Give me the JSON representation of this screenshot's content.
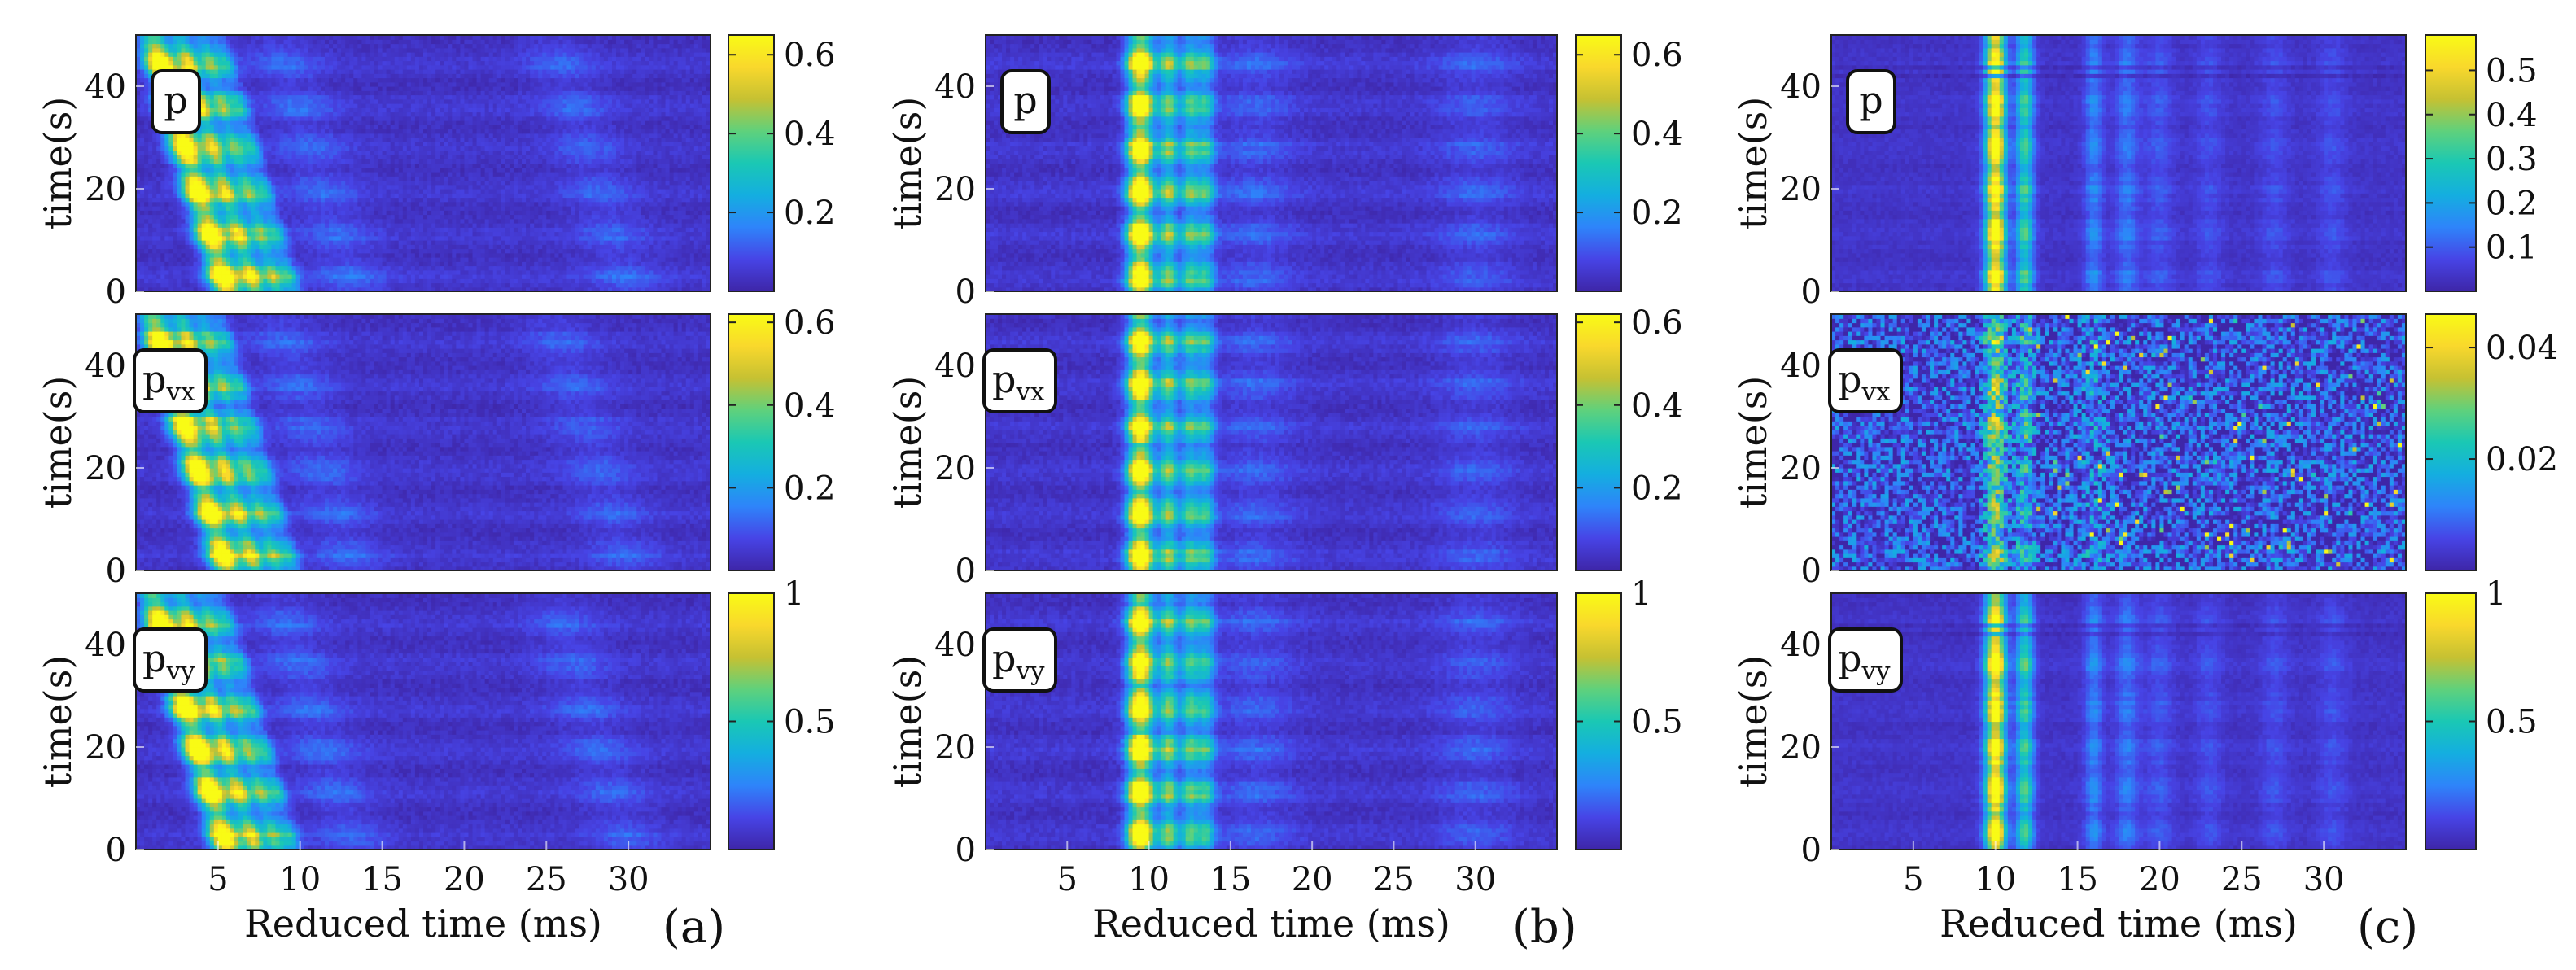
{
  "figure": {
    "panel_tags": [
      "(a)",
      "(b)",
      "(c)"
    ],
    "colormap": [
      "#3e26a8",
      "#4744e6",
      "#2e84fa",
      "#14aee0",
      "#1ac8b4",
      "#5fd17c",
      "#c6c132",
      "#f9d82c",
      "#f9fb15"
    ]
  },
  "chart_data": [
    {
      "id": "a-p",
      "type": "heatmap",
      "column": "a",
      "row": 1,
      "label_main": "p",
      "label_sub": "",
      "ylabel": "time(s)",
      "xlabel": "",
      "xlim": [
        0,
        35
      ],
      "ylim": [
        0,
        50
      ],
      "xticks": [],
      "xtick_labels": [],
      "yticks": [
        0,
        20,
        40
      ],
      "ytick_labels": [
        "0",
        "20",
        "40"
      ],
      "clim": [
        0,
        0.65
      ],
      "cbar_ticks": [
        0.2,
        0.4,
        0.6
      ],
      "cbar_tick_labels": [
        "0.2",
        "0.4",
        "0.6"
      ],
      "pattern": "slanted",
      "features": [
        [
          5.6,
          0.62,
          1.0
        ],
        [
          7.3,
          0.45,
          0.68
        ],
        [
          8.6,
          0.4,
          0.48
        ],
        [
          9.6,
          0.4,
          0.32
        ],
        [
          13.2,
          1.5,
          0.1
        ],
        [
          30.0,
          1.5,
          0.09
        ]
      ],
      "drift_ms_per_s": -0.092,
      "noise_level": 0.07,
      "periodic_mod": 0.4,
      "period_s": 8.3
    },
    {
      "id": "a-pvx",
      "type": "heatmap",
      "column": "a",
      "row": 2,
      "label_main": "p",
      "label_sub": "vx",
      "ylabel": "time(s)",
      "xlabel": "",
      "xlim": [
        0,
        35
      ],
      "ylim": [
        0,
        50
      ],
      "xticks": [],
      "xtick_labels": [],
      "yticks": [
        0,
        20,
        40
      ],
      "ytick_labels": [
        "0",
        "20",
        "40"
      ],
      "clim": [
        0,
        0.62
      ],
      "cbar_ticks": [
        0.2,
        0.4,
        0.6
      ],
      "cbar_tick_labels": [
        "0.2",
        "0.4",
        "0.6"
      ],
      "pattern": "slanted",
      "features": [
        [
          5.6,
          0.62,
          1.0
        ],
        [
          7.3,
          0.45,
          0.68
        ],
        [
          8.6,
          0.4,
          0.48
        ],
        [
          9.6,
          0.4,
          0.32
        ],
        [
          13.2,
          1.5,
          0.1
        ],
        [
          30.0,
          1.5,
          0.09
        ]
      ],
      "drift_ms_per_s": -0.092,
      "noise_level": 0.07,
      "periodic_mod": 0.4,
      "period_s": 8.3
    },
    {
      "id": "a-pvy",
      "type": "heatmap",
      "column": "a",
      "row": 3,
      "label_main": "p",
      "label_sub": "vy",
      "ylabel": "time(s)",
      "xlabel": "Reduced time (ms)",
      "xlim": [
        0,
        35
      ],
      "ylim": [
        0,
        50
      ],
      "xticks": [
        5,
        10,
        15,
        20,
        25,
        30
      ],
      "xtick_labels": [
        "5",
        "10",
        "15",
        "20",
        "25",
        "30"
      ],
      "yticks": [
        0,
        20,
        40
      ],
      "ytick_labels": [
        "0",
        "20",
        "40"
      ],
      "clim": [
        0,
        1.0
      ],
      "cbar_ticks": [
        0.5,
        1.0
      ],
      "cbar_tick_labels": [
        "0.5",
        "1"
      ],
      "pattern": "slanted",
      "features": [
        [
          5.6,
          0.62,
          1.0
        ],
        [
          7.3,
          0.45,
          0.68
        ],
        [
          8.6,
          0.4,
          0.48
        ],
        [
          9.6,
          0.4,
          0.32
        ],
        [
          13.2,
          1.5,
          0.1
        ],
        [
          30.0,
          1.5,
          0.09
        ]
      ],
      "drift_ms_per_s": -0.092,
      "noise_level": 0.07,
      "periodic_mod": 0.4,
      "period_s": 8.3
    },
    {
      "id": "b-p",
      "type": "heatmap",
      "column": "b",
      "row": 1,
      "label_main": "p",
      "label_sub": "",
      "ylabel": "time(s)",
      "xlabel": "",
      "xlim": [
        0,
        35
      ],
      "ylim": [
        0,
        50
      ],
      "xticks": [],
      "xtick_labels": [],
      "yticks": [
        0,
        20,
        40
      ],
      "ytick_labels": [
        "0",
        "20",
        "40"
      ],
      "clim": [
        0,
        0.65
      ],
      "cbar_ticks": [
        0.2,
        0.4,
        0.6
      ],
      "cbar_tick_labels": [
        "0.2",
        "0.4",
        "0.6"
      ],
      "pattern": "vertical",
      "features": [
        [
          9.5,
          0.55,
          1.0
        ],
        [
          11.2,
          0.4,
          0.5
        ],
        [
          12.5,
          0.4,
          0.42
        ],
        [
          13.5,
          0.4,
          0.36
        ],
        [
          16.5,
          1.6,
          0.09
        ],
        [
          30.0,
          1.6,
          0.08
        ]
      ],
      "drift_ms_per_s": 0.0,
      "noise_level": 0.07,
      "periodic_mod": 0.4,
      "period_s": 8.3
    },
    {
      "id": "b-pvx",
      "type": "heatmap",
      "column": "b",
      "row": 2,
      "label_main": "p",
      "label_sub": "vx",
      "ylabel": "time(s)",
      "xlabel": "",
      "xlim": [
        0,
        35
      ],
      "ylim": [
        0,
        50
      ],
      "xticks": [],
      "xtick_labels": [],
      "yticks": [
        0,
        20,
        40
      ],
      "ytick_labels": [
        "0",
        "20",
        "40"
      ],
      "clim": [
        0,
        0.62
      ],
      "cbar_ticks": [
        0.2,
        0.4,
        0.6
      ],
      "cbar_tick_labels": [
        "0.2",
        "0.4",
        "0.6"
      ],
      "pattern": "vertical",
      "features": [
        [
          9.5,
          0.55,
          1.0
        ],
        [
          11.2,
          0.4,
          0.5
        ],
        [
          12.5,
          0.4,
          0.42
        ],
        [
          13.5,
          0.4,
          0.36
        ],
        [
          16.5,
          1.6,
          0.09
        ],
        [
          30.0,
          1.6,
          0.08
        ]
      ],
      "drift_ms_per_s": 0.0,
      "noise_level": 0.07,
      "periodic_mod": 0.4,
      "period_s": 8.3
    },
    {
      "id": "b-pvy",
      "type": "heatmap",
      "column": "b",
      "row": 3,
      "label_main": "p",
      "label_sub": "vy",
      "ylabel": "time(s)",
      "xlabel": "Reduced time (ms)",
      "xlim": [
        0,
        35
      ],
      "ylim": [
        0,
        50
      ],
      "xticks": [
        5,
        10,
        15,
        20,
        25,
        30
      ],
      "xtick_labels": [
        "5",
        "10",
        "15",
        "20",
        "25",
        "30"
      ],
      "yticks": [
        0,
        20,
        40
      ],
      "ytick_labels": [
        "0",
        "20",
        "40"
      ],
      "clim": [
        0,
        1.0
      ],
      "cbar_ticks": [
        0.5,
        1.0
      ],
      "cbar_tick_labels": [
        "0.5",
        "1"
      ],
      "pattern": "vertical",
      "features": [
        [
          9.5,
          0.55,
          1.0
        ],
        [
          11.2,
          0.4,
          0.5
        ],
        [
          12.5,
          0.4,
          0.42
        ],
        [
          13.5,
          0.4,
          0.36
        ],
        [
          16.5,
          1.6,
          0.09
        ],
        [
          30.0,
          1.6,
          0.08
        ]
      ],
      "drift_ms_per_s": 0.0,
      "noise_level": 0.07,
      "periodic_mod": 0.4,
      "period_s": 8.3
    },
    {
      "id": "c-p",
      "type": "heatmap",
      "column": "c",
      "row": 1,
      "label_main": "p",
      "label_sub": "",
      "ylabel": "time(s)",
      "xlabel": "",
      "xlim": [
        0,
        35
      ],
      "ylim": [
        0,
        50
      ],
      "xticks": [],
      "xtick_labels": [],
      "yticks": [
        0,
        20,
        40
      ],
      "ytick_labels": [
        "0",
        "20",
        "40"
      ],
      "clim": [
        0,
        0.58
      ],
      "cbar_ticks": [
        0.1,
        0.2,
        0.3,
        0.4,
        0.5
      ],
      "cbar_tick_labels": [
        "0.1",
        "0.2",
        "0.3",
        "0.4",
        "0.5"
      ],
      "pattern": "vertical",
      "features": [
        [
          10.0,
          0.42,
          1.0
        ],
        [
          11.8,
          0.38,
          0.48
        ],
        [
          16.0,
          0.4,
          0.2
        ],
        [
          18.0,
          0.5,
          0.17
        ],
        [
          20.0,
          0.6,
          0.1
        ],
        [
          23.0,
          0.6,
          0.08
        ],
        [
          27.0,
          0.6,
          0.08
        ],
        [
          30.5,
          0.6,
          0.08
        ]
      ],
      "drift_ms_per_s": 0.0,
      "noise_level": 0.05,
      "periodic_mod": 0.18,
      "period_s": 8.3,
      "stripes_s": [
        42.0,
        43.5
      ]
    },
    {
      "id": "c-pvx",
      "type": "heatmap",
      "column": "c",
      "row": 2,
      "label_main": "p",
      "label_sub": "vx",
      "ylabel": "time(s)",
      "xlabel": "",
      "xlim": [
        0,
        35
      ],
      "ylim": [
        0,
        50
      ],
      "xticks": [],
      "xtick_labels": [],
      "yticks": [
        0,
        20,
        40
      ],
      "ytick_labels": [
        "0",
        "20",
        "40"
      ],
      "clim": [
        0,
        0.046
      ],
      "cbar_ticks": [
        0.02,
        0.04
      ],
      "cbar_tick_labels": [
        "0.02",
        "0.04"
      ],
      "pattern": "noisy",
      "features": [
        [
          10.0,
          0.45,
          0.55
        ],
        [
          11.8,
          0.4,
          0.3
        ],
        [
          16.0,
          0.6,
          0.14
        ]
      ],
      "drift_ms_per_s": 0.0,
      "noise_level": 0.24,
      "periodic_mod": 0.2,
      "period_s": 8.3,
      "stripes_s": [
        42.0,
        43.5
      ]
    },
    {
      "id": "c-pvy",
      "type": "heatmap",
      "column": "c",
      "row": 3,
      "label_main": "p",
      "label_sub": "vy",
      "ylabel": "time(s)",
      "xlabel": "Reduced time (ms)",
      "xlim": [
        0,
        35
      ],
      "ylim": [
        0,
        50
      ],
      "xticks": [
        5,
        10,
        15,
        20,
        25,
        30
      ],
      "xtick_labels": [
        "5",
        "10",
        "15",
        "20",
        "25",
        "30"
      ],
      "yticks": [
        0,
        20,
        40
      ],
      "ytick_labels": [
        "0",
        "20",
        "40"
      ],
      "clim": [
        0,
        1.0
      ],
      "cbar_ticks": [
        0.5,
        1.0
      ],
      "cbar_tick_labels": [
        "0.5",
        "1"
      ],
      "pattern": "vertical",
      "features": [
        [
          10.0,
          0.42,
          1.0
        ],
        [
          11.8,
          0.38,
          0.48
        ],
        [
          16.0,
          0.4,
          0.2
        ],
        [
          18.0,
          0.5,
          0.17
        ],
        [
          20.0,
          0.6,
          0.1
        ],
        [
          23.0,
          0.6,
          0.08
        ],
        [
          27.0,
          0.6,
          0.08
        ],
        [
          30.5,
          0.6,
          0.08
        ]
      ],
      "drift_ms_per_s": 0.0,
      "noise_level": 0.05,
      "periodic_mod": 0.18,
      "period_s": 8.3,
      "stripes_s": [
        42.0,
        43.5
      ]
    }
  ]
}
